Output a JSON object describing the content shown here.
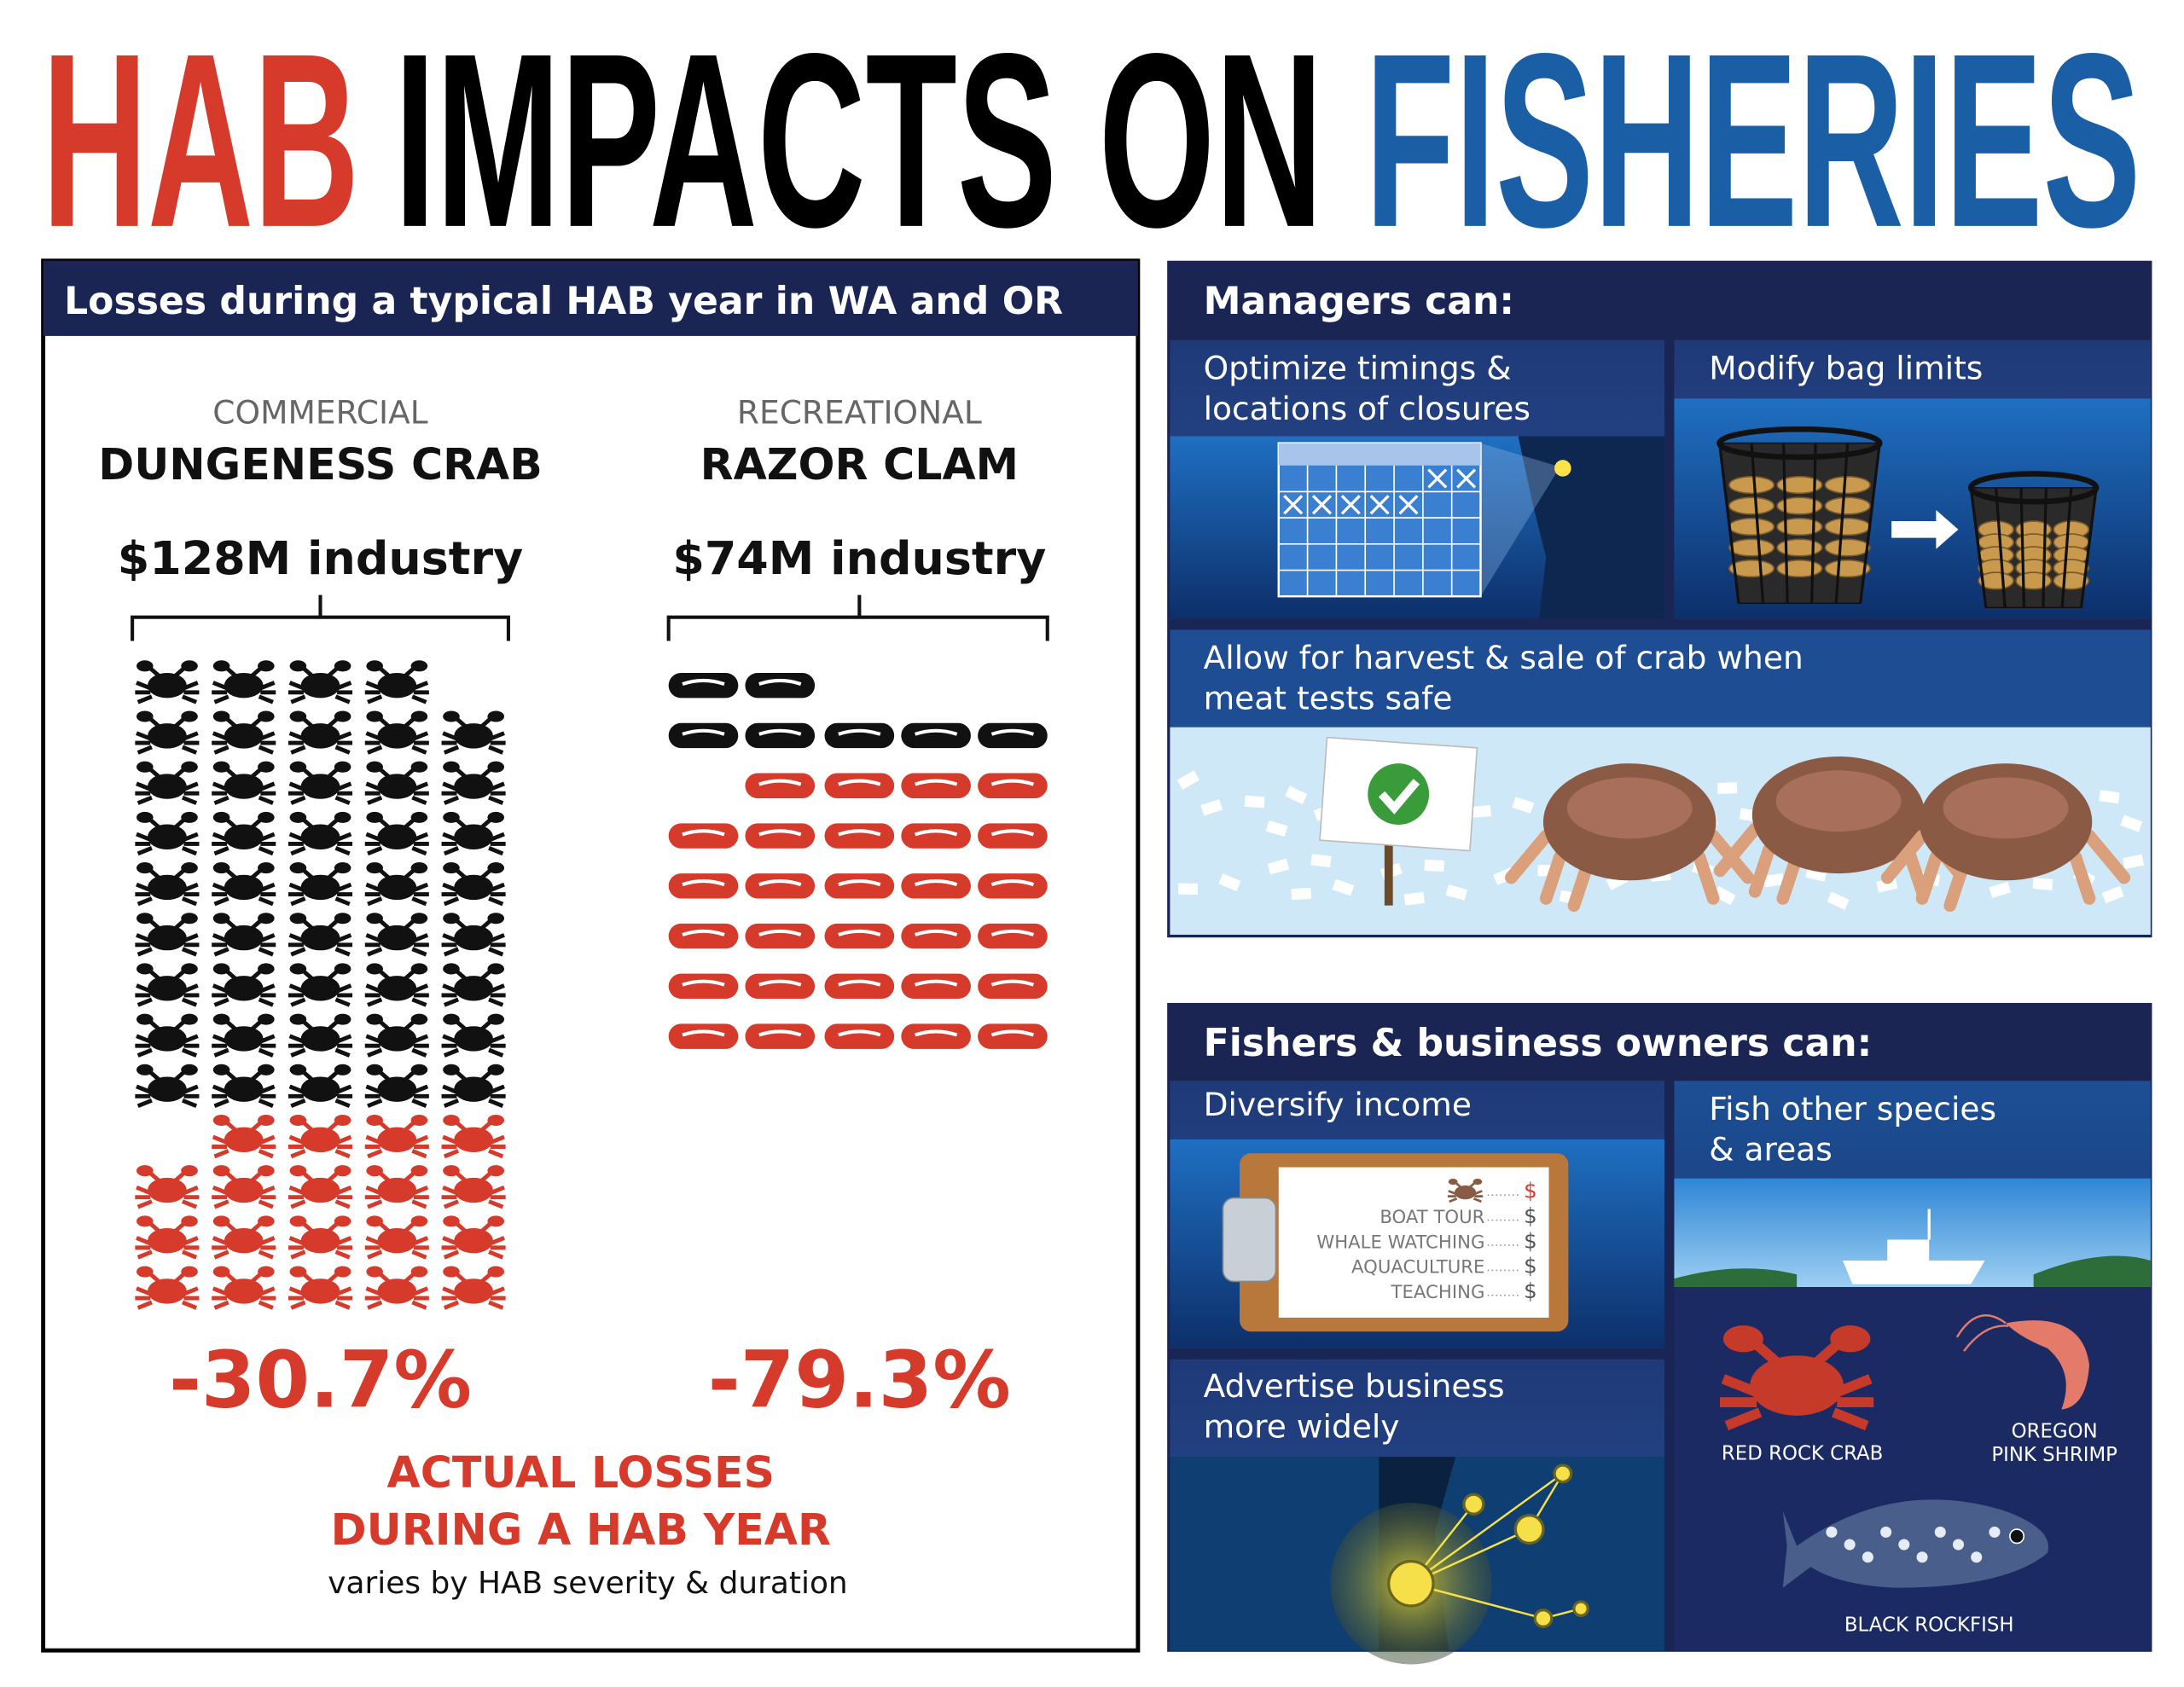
{
  "header": {
    "title": [
      "HAB",
      "IMPACTS ON",
      "FISHERIES"
    ]
  },
  "losses": {
    "title": "Losses during a typical HAB year in WA and OR",
    "columns": [
      {
        "category": "COMMERCIAL",
        "species": "DUNGENESS CRAB",
        "industry": "$128M industry",
        "loss": "-30.7%"
      },
      {
        "category": "RECREATIONAL",
        "species": "RAZOR CLAM",
        "industry": "$74M industry",
        "loss": "-79.3%"
      }
    ],
    "footer": [
      "ACTUAL LOSSES",
      "DURING A HAB YEAR"
    ],
    "note": "varies by HAB severity & duration"
  },
  "managers": {
    "title": "Managers can:",
    "actions": [
      [
        "Optimize timings &",
        "locations of closures"
      ],
      [
        "Modify bag limits"
      ],
      [
        "Allow for harvest & sale of crab when",
        "meat tests safe"
      ]
    ]
  },
  "fishers": {
    "title": "Fishers & business owners can:",
    "actions": [
      [
        "Diversify income"
      ],
      [
        "Advertise business",
        "more widely"
      ],
      [
        "Fish other species",
        "& areas"
      ]
    ],
    "menu": [
      {
        "price": "$"
      },
      {
        "label": "BOAT TOUR",
        "price": "$"
      },
      {
        "label": "WHALE WATCHING",
        "price": "$"
      },
      {
        "label": "AQUACULTURE",
        "price": "$"
      },
      {
        "label": "TEACHING",
        "price": "$"
      }
    ],
    "species": [
      [
        "RED ROCK CRAB"
      ],
      [
        "OREGON",
        "PINK SHRIMP"
      ],
      [
        "BLACK ROCKFISH"
      ]
    ]
  }
}
